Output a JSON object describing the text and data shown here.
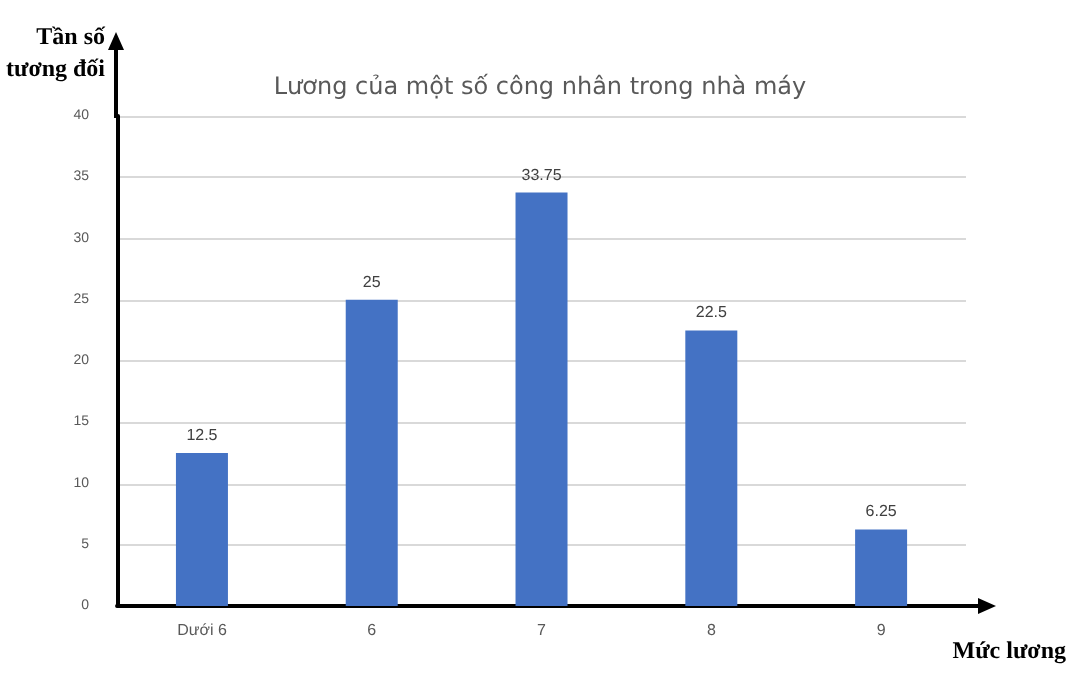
{
  "chart_data": {
    "type": "bar",
    "title": "Lương của một số công nhân trong nhà máy",
    "xlabel": "Mức lương",
    "ylabel": "Tần số\ntương đối",
    "categories": [
      "Dưới 6",
      "6",
      "7",
      "8",
      "9"
    ],
    "values": [
      12.5,
      25,
      33.75,
      22.5,
      6.25
    ],
    "color": "#4472c4",
    "ylim": [
      0,
      40
    ],
    "yticks": [
      0,
      5,
      10,
      15,
      20,
      25,
      30,
      35,
      40
    ],
    "grid": "y",
    "data_labels": true
  }
}
